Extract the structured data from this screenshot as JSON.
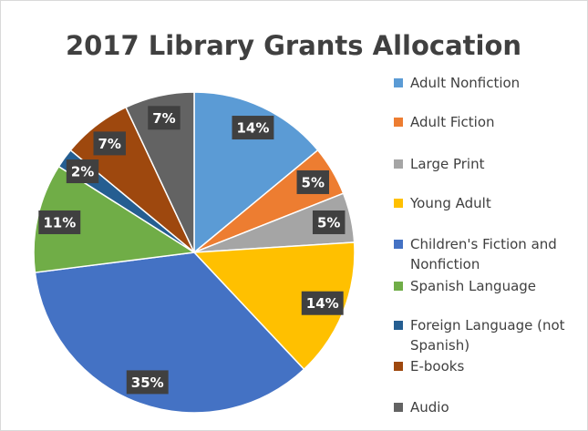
{
  "chart_data": {
    "type": "pie",
    "title": "2017 Library Grants Allocation",
    "categories": [
      "Adult Nonfiction",
      "Adult Fiction",
      "Large Print",
      "Young Adult",
      "Children's Fiction and Nonfiction",
      "Spanish Language",
      "Foreign Language (not Spanish)",
      "E-books",
      "Audio"
    ],
    "values": [
      14,
      5,
      5,
      14,
      35,
      11,
      2,
      7,
      7
    ],
    "value_labels": [
      "14%",
      "5%",
      "5%",
      "14%",
      "35%",
      "11%",
      "2%",
      "7%",
      "7%"
    ],
    "colors": [
      "#5b9bd5",
      "#ed7d31",
      "#a5a5a5",
      "#ffc000",
      "#4472c4",
      "#70ad47",
      "#255e91",
      "#9e480e",
      "#636363"
    ],
    "legend": "right"
  }
}
